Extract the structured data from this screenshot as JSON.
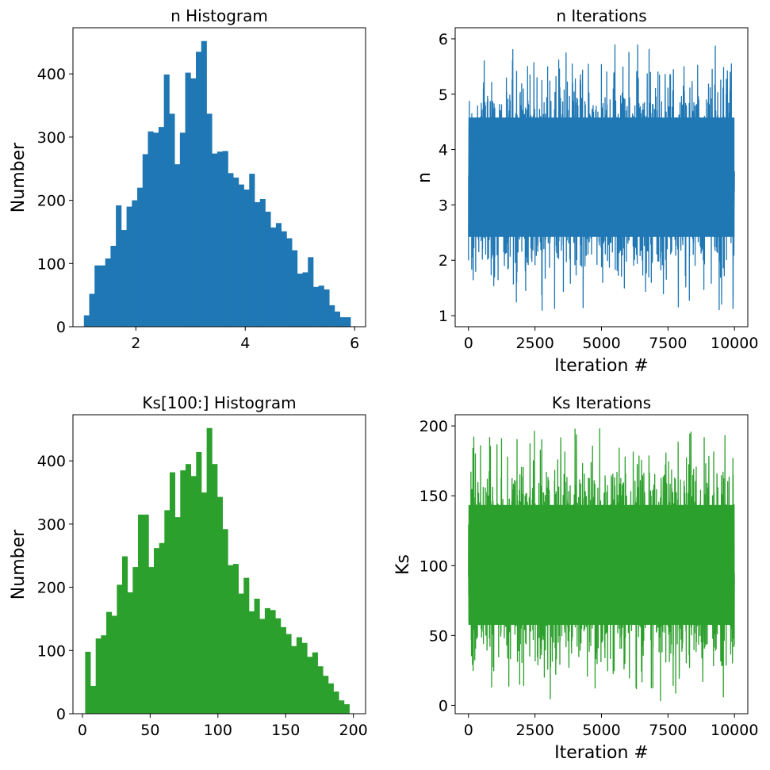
{
  "colors": {
    "blue": "#1f77b4",
    "green": "#2ca02c"
  },
  "chart_data": [
    {
      "id": "n-histogram",
      "type": "bar",
      "title": "n Histogram",
      "xlabel": "",
      "ylabel": "Number",
      "color": "#1f77b4",
      "xlim": [
        0.85,
        6.2
      ],
      "ylim": [
        0,
        473
      ],
      "xticks": [
        2,
        4,
        6
      ],
      "yticks": [
        0,
        100,
        200,
        300,
        400
      ],
      "bin_start": 1.05,
      "bin_width": 0.0975,
      "values": [
        18,
        52,
        97,
        97,
        108,
        128,
        192,
        153,
        190,
        200,
        220,
        273,
        309,
        307,
        316,
        399,
        337,
        257,
        307,
        402,
        393,
        435,
        452,
        337,
        274,
        277,
        278,
        243,
        236,
        225,
        217,
        242,
        197,
        202,
        182,
        157,
        164,
        151,
        140,
        121,
        84,
        86,
        110,
        63,
        65,
        59,
        34,
        24,
        15,
        15
      ]
    },
    {
      "id": "n-iterations",
      "type": "line",
      "title": "n Iterations",
      "xlabel": "Iteration #",
      "ylabel": "n",
      "color": "#1f77b4",
      "xlim": [
        -500,
        10500
      ],
      "ylim": [
        0.8,
        6.2
      ],
      "xticks": [
        0,
        2500,
        5000,
        7500,
        10000
      ],
      "yticks": [
        1,
        2,
        3,
        4,
        5,
        6
      ],
      "n_points": 10000,
      "value_range": [
        1.05,
        5.95
      ]
    },
    {
      "id": "ks-histogram",
      "type": "bar",
      "title": "Ks[100:] Histogram",
      "xlabel": "",
      "ylabel": "Number",
      "color": "#2ca02c",
      "xlim": [
        -7,
        209
      ],
      "ylim": [
        0,
        473
      ],
      "xticks": [
        0,
        50,
        100,
        150,
        200
      ],
      "yticks": [
        0,
        100,
        200,
        300,
        400
      ],
      "bin_start": 2,
      "bin_width": 3.9,
      "values": [
        98,
        44,
        119,
        124,
        161,
        155,
        204,
        249,
        192,
        232,
        315,
        315,
        232,
        262,
        270,
        322,
        382,
        311,
        385,
        395,
        376,
        414,
        350,
        452,
        395,
        343,
        292,
        235,
        237,
        190,
        215,
        162,
        182,
        150,
        167,
        164,
        151,
        137,
        126,
        107,
        121,
        112,
        90,
        97,
        75,
        60,
        48,
        35,
        21,
        15
      ]
    },
    {
      "id": "ks-iterations",
      "type": "line",
      "title": "Ks Iterations",
      "xlabel": "Iteration #",
      "ylabel": "Ks",
      "color": "#2ca02c",
      "xlim": [
        -500,
        10500
      ],
      "ylim": [
        -6,
        208
      ],
      "xticks": [
        0,
        2500,
        5000,
        7500,
        10000
      ],
      "yticks": [
        0,
        50,
        100,
        150,
        200
      ],
      "n_points": 10000,
      "value_range": [
        3,
        198
      ]
    }
  ]
}
